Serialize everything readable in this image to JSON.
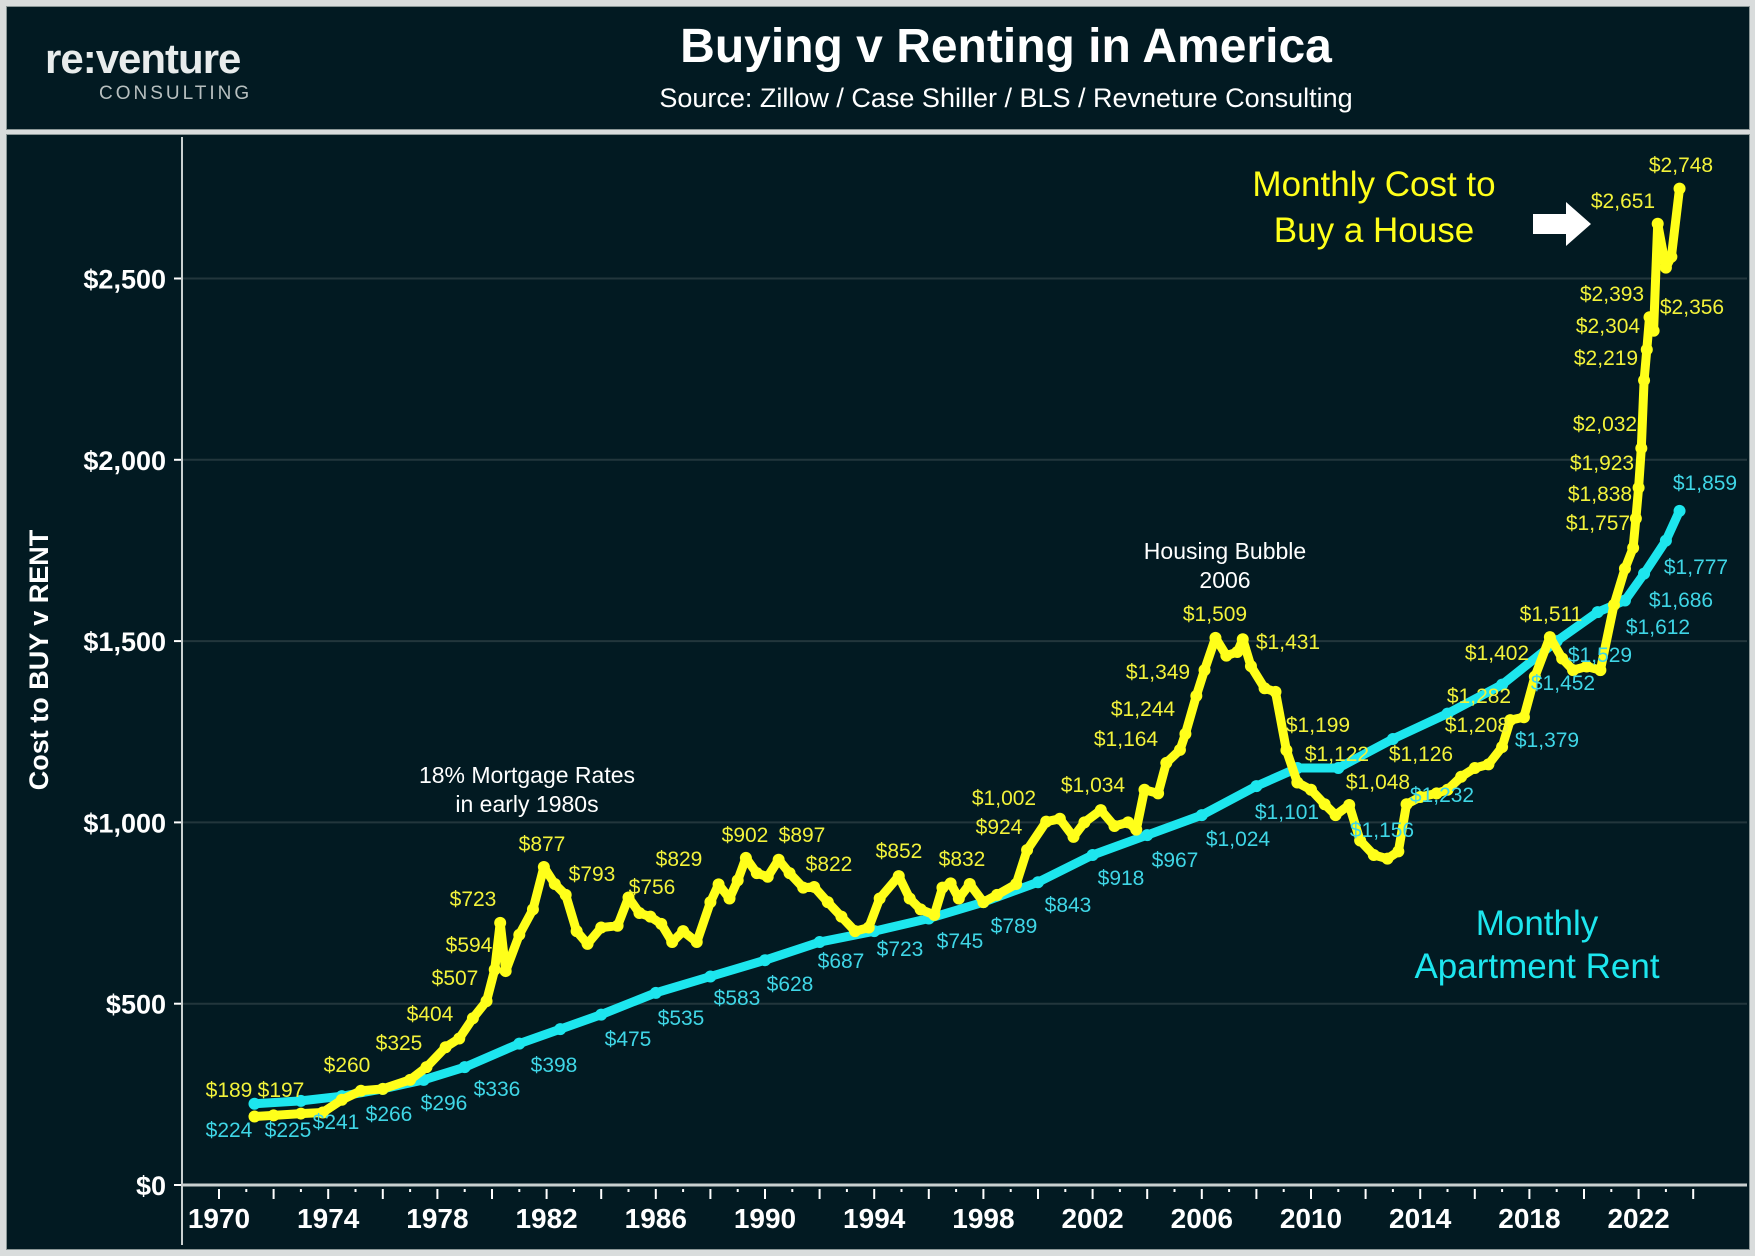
{
  "header": {
    "logo_main": "re:venture",
    "logo_sub": "CONSULTING",
    "title": "Buying v Renting in America",
    "subtitle": "Source: Zillow / Case Shiller / BLS / Revneture Consulting"
  },
  "colors": {
    "background": "#021a22",
    "buy": "#ffff1a",
    "rent": "#1de6ee",
    "grid": "#22363c",
    "text": "#ffffff"
  },
  "chart_data": {
    "type": "line",
    "title": "Buying v Renting in America",
    "subtitle": "Source: Zillow / Case Shiller / BLS / Revneture Consulting",
    "xlabel": "",
    "ylabel": "Cost to BUY v RENT",
    "xlim": [
      1969,
      2025
    ],
    "ylim": [
      0,
      2850
    ],
    "grid": true,
    "x_ticks": [
      "1970",
      "1974",
      "1978",
      "1982",
      "1986",
      "1990",
      "1994",
      "1998",
      "2002",
      "2006",
      "2010",
      "2014",
      "2018",
      "2022"
    ],
    "y_ticks": [
      {
        "value": 0,
        "label": "$0"
      },
      {
        "value": 500,
        "label": "$500"
      },
      {
        "value": 1000,
        "label": "$1,000"
      },
      {
        "value": 1500,
        "label": "$1,500"
      },
      {
        "value": 2000,
        "label": "$2,000"
      },
      {
        "value": 2500,
        "label": "$2,500"
      }
    ],
    "annotations": {
      "buy_label": [
        "Monthly Cost to",
        "Buy a House"
      ],
      "rent_label": [
        "Monthly",
        "Apartment Rent"
      ],
      "mortgage_note": [
        "18% Mortgage Rates",
        "in early 1980s"
      ],
      "bubble_note": [
        "Housing Bubble",
        "2006"
      ],
      "arrow": "right-arrow-icon"
    },
    "series": [
      {
        "name": "Monthly Cost to Buy a House",
        "color": "#ffff1a",
        "points": [
          [
            1971.3,
            189
          ],
          [
            1972,
            192
          ],
          [
            1973,
            197
          ],
          [
            1973.8,
            200
          ],
          [
            1974.5,
            235
          ],
          [
            1975.2,
            260
          ],
          [
            1976,
            265
          ],
          [
            1977,
            290
          ],
          [
            1977.6,
            325
          ],
          [
            1978.3,
            380
          ],
          [
            1978.8,
            404
          ],
          [
            1979.3,
            460
          ],
          [
            1979.8,
            507
          ],
          [
            1980.1,
            594
          ],
          [
            1980.3,
            723
          ],
          [
            1980.5,
            590
          ],
          [
            1981,
            690
          ],
          [
            1981.5,
            760
          ],
          [
            1981.9,
            877
          ],
          [
            1982.3,
            830
          ],
          [
            1982.7,
            800
          ],
          [
            1983.1,
            700
          ],
          [
            1983.5,
            665
          ],
          [
            1984,
            710
          ],
          [
            1984.6,
            715
          ],
          [
            1985,
            793
          ],
          [
            1985.4,
            750
          ],
          [
            1985.8,
            740
          ],
          [
            1986.2,
            720
          ],
          [
            1986.6,
            670
          ],
          [
            1987,
            700
          ],
          [
            1987.5,
            670
          ],
          [
            1988,
            780
          ],
          [
            1988.3,
            829
          ],
          [
            1988.7,
            790
          ],
          [
            1989,
            840
          ],
          [
            1989.3,
            902
          ],
          [
            1989.7,
            860
          ],
          [
            1990.1,
            850
          ],
          [
            1990.5,
            897
          ],
          [
            1990.9,
            860
          ],
          [
            1991.4,
            820
          ],
          [
            1991.8,
            822
          ],
          [
            1992.3,
            780
          ],
          [
            1992.8,
            740
          ],
          [
            1993.3,
            700
          ],
          [
            1993.8,
            710
          ],
          [
            1994.2,
            790
          ],
          [
            1994.9,
            852
          ],
          [
            1995.3,
            790
          ],
          [
            1995.7,
            760
          ],
          [
            1996.2,
            745
          ],
          [
            1996.5,
            820
          ],
          [
            1996.8,
            832
          ],
          [
            1997.1,
            790
          ],
          [
            1997.5,
            830
          ],
          [
            1998,
            780
          ],
          [
            1998.5,
            800
          ],
          [
            1999.2,
            830
          ],
          [
            1999.6,
            924
          ],
          [
            2000.3,
            1002
          ],
          [
            2000.8,
            1010
          ],
          [
            2001.3,
            960
          ],
          [
            2001.7,
            1000
          ],
          [
            2002.3,
            1034
          ],
          [
            2002.8,
            990
          ],
          [
            2003.3,
            1000
          ],
          [
            2003.6,
            980
          ],
          [
            2003.9,
            1090
          ],
          [
            2004.4,
            1080
          ],
          [
            2004.7,
            1164
          ],
          [
            2005.2,
            1200
          ],
          [
            2005.4,
            1244
          ],
          [
            2005.8,
            1349
          ],
          [
            2006.1,
            1420
          ],
          [
            2006.5,
            1509
          ],
          [
            2006.9,
            1460
          ],
          [
            2007.3,
            1470
          ],
          [
            2007.5,
            1505
          ],
          [
            2007.8,
            1431
          ],
          [
            2008.3,
            1370
          ],
          [
            2008.7,
            1360
          ],
          [
            2009.1,
            1199
          ],
          [
            2009.5,
            1110
          ],
          [
            2010,
            1090
          ],
          [
            2010.5,
            1050
          ],
          [
            2010.9,
            1020
          ],
          [
            2011.4,
            1048
          ],
          [
            2011.8,
            950
          ],
          [
            2012.3,
            910
          ],
          [
            2012.8,
            900
          ],
          [
            2013.2,
            920
          ],
          [
            2013.5,
            1050
          ],
          [
            2014,
            1070
          ],
          [
            2014.6,
            1080
          ],
          [
            2015,
            1090
          ],
          [
            2015.5,
            1126
          ],
          [
            2016,
            1150
          ],
          [
            2016.5,
            1160
          ],
          [
            2017,
            1208
          ],
          [
            2017.3,
            1282
          ],
          [
            2017.8,
            1290
          ],
          [
            2018.2,
            1402
          ],
          [
            2018.75,
            1511
          ],
          [
            2019.2,
            1452
          ],
          [
            2019.6,
            1420
          ],
          [
            2020.1,
            1430
          ],
          [
            2020.6,
            1420
          ],
          [
            2021.1,
            1600
          ],
          [
            2021.5,
            1700
          ],
          [
            2021.8,
            1757
          ],
          [
            2021.9,
            1838
          ],
          [
            2022,
            1923
          ],
          [
            2022.1,
            2032
          ],
          [
            2022.2,
            2219
          ],
          [
            2022.3,
            2304
          ],
          [
            2022.4,
            2393
          ],
          [
            2022.55,
            2356
          ],
          [
            2022.7,
            2651
          ],
          [
            2023,
            2530
          ],
          [
            2023.2,
            2560
          ],
          [
            2023.5,
            2748
          ]
        ],
        "labels": [
          "$189",
          "$197",
          "$260",
          "$325",
          "$404",
          "$507",
          "$594",
          "$723",
          "$877",
          "$793",
          "$756",
          "$829",
          "$902",
          "$897",
          "$822",
          "$852",
          "$832",
          "$1,002",
          "$924",
          "$1,034",
          "$1,164",
          "$1,244",
          "$1,349",
          "$1,509",
          "$1,431",
          "$1,199",
          "$1,122",
          "$1,048",
          "$1,126",
          "$1,208",
          "$1,282",
          "$1,402",
          "$1,511",
          "$1,757",
          "$1,838",
          "$1,923",
          "$2,032",
          "$2,219",
          "$2,304",
          "$2,393",
          "$2,356",
          "$2,651",
          "$2,748"
        ]
      },
      {
        "name": "Monthly Apartment Rent",
        "color": "#1de6ee",
        "points": [
          [
            1971.3,
            224
          ],
          [
            1973,
            232
          ],
          [
            1974.5,
            245
          ],
          [
            1976,
            265
          ],
          [
            1977.5,
            290
          ],
          [
            1979,
            325
          ],
          [
            1981,
            390
          ],
          [
            1982.5,
            430
          ],
          [
            1984,
            470
          ],
          [
            1986,
            530
          ],
          [
            1988,
            575
          ],
          [
            1990,
            620
          ],
          [
            1992,
            670
          ],
          [
            1994,
            700
          ],
          [
            1996,
            735
          ],
          [
            1998,
            780
          ],
          [
            2000,
            835
          ],
          [
            2002,
            910
          ],
          [
            2004,
            965
          ],
          [
            2006,
            1020
          ],
          [
            2008,
            1100
          ],
          [
            2009.5,
            1150
          ],
          [
            2011,
            1150
          ],
          [
            2013,
            1230
          ],
          [
            2015,
            1300
          ],
          [
            2017,
            1380
          ],
          [
            2019,
            1500
          ],
          [
            2020.5,
            1580
          ],
          [
            2021.5,
            1612
          ],
          [
            2022.2,
            1686
          ],
          [
            2023,
            1777
          ],
          [
            2023.5,
            1859
          ]
        ],
        "labels": [
          "$224",
          "$225",
          "$241",
          "$266",
          "$296",
          "$336",
          "$398",
          "$475",
          "$535",
          "$583",
          "$628",
          "$687",
          "$723",
          "$745",
          "$789",
          "$843",
          "$918",
          "$967",
          "$1,024",
          "$1,101",
          "$1,156",
          "$1,232",
          "$1,379",
          "$1,452",
          "$1,529",
          "$1,612",
          "$1,686",
          "$1,777",
          "$1,859"
        ]
      }
    ]
  }
}
